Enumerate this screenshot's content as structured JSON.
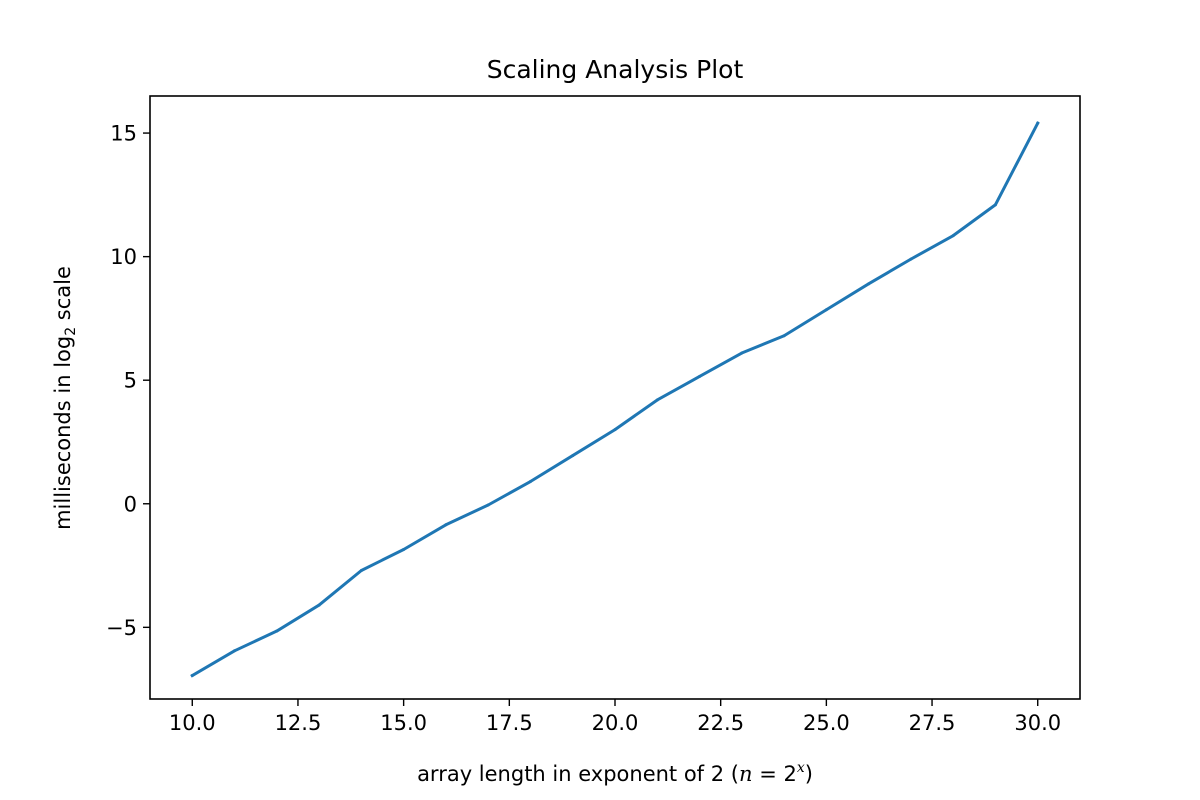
{
  "chart_data": {
    "type": "line",
    "title": "Scaling Analysis Plot",
    "xlabel": {
      "prefix": "array length in exponent of 2 (",
      "math_var": "n",
      "math_eq": " = 2",
      "math_sup": "x",
      "suffix": ")"
    },
    "ylabel": {
      "prefix": "milliseconds in log",
      "sub": "2",
      "suffix": " scale"
    },
    "xlim": [
      9.0,
      31.0
    ],
    "ylim": [
      -7.9,
      16.5
    ],
    "xticks": [
      10.0,
      12.5,
      15.0,
      17.5,
      20.0,
      22.5,
      25.0,
      27.5,
      30.0
    ],
    "xtick_labels": [
      "10.0",
      "12.5",
      "15.0",
      "17.5",
      "20.0",
      "22.5",
      "25.0",
      "27.5",
      "30.0"
    ],
    "yticks": [
      -5,
      0,
      5,
      10,
      15
    ],
    "ytick_labels": [
      "−5",
      "0",
      "5",
      "10",
      "15"
    ],
    "grid": false,
    "series": [
      {
        "color": "#1f77b4",
        "x": [
          10,
          11,
          12,
          13,
          14,
          15,
          16,
          17,
          18,
          19,
          20,
          21,
          22,
          23,
          24,
          25,
          26,
          27,
          28,
          29,
          30
        ],
        "values": [
          -6.95,
          -5.95,
          -5.15,
          -4.1,
          -2.7,
          -1.85,
          -0.85,
          -0.05,
          0.9,
          1.95,
          3.0,
          4.2,
          5.15,
          6.1,
          6.8,
          7.85,
          8.9,
          9.9,
          10.85,
          12.1,
          15.4
        ]
      }
    ]
  }
}
